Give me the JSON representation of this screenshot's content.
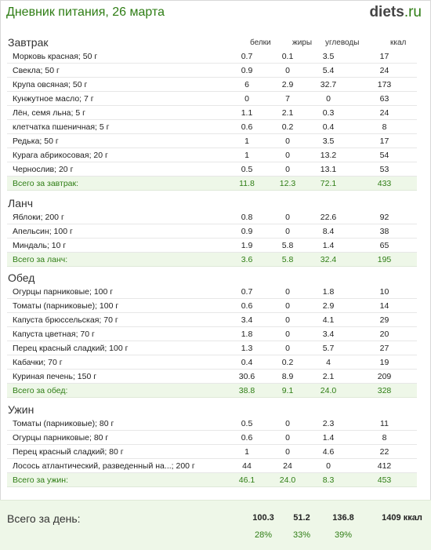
{
  "header": {
    "title": "Дневник питания, 26 марта",
    "logo_main": "diets",
    "logo_tld": ".ru"
  },
  "columns": {
    "protein": "белки",
    "fat": "жиры",
    "carbs": "углеводы",
    "kcal": "ккал"
  },
  "meals": [
    {
      "title": "Завтрак",
      "items": [
        {
          "name": "Морковь красная; 50 г",
          "p": "0.7",
          "f": "0.1",
          "c": "3.5",
          "k": "17"
        },
        {
          "name": "Свекла; 50 г",
          "p": "0.9",
          "f": "0",
          "c": "5.4",
          "k": "24"
        },
        {
          "name": "Крупа овсяная; 50 г",
          "p": "6",
          "f": "2.9",
          "c": "32.7",
          "k": "173"
        },
        {
          "name": "Кунжутное масло; 7 г",
          "p": "0",
          "f": "7",
          "c": "0",
          "k": "63"
        },
        {
          "name": "Лён, семя льна; 5 г",
          "p": "1.1",
          "f": "2.1",
          "c": "0.3",
          "k": "24"
        },
        {
          "name": "клетчатка пшеничная; 5 г",
          "p": "0.6",
          "f": "0.2",
          "c": "0.4",
          "k": "8"
        },
        {
          "name": "Редька; 50 г",
          "p": "1",
          "f": "0",
          "c": "3.5",
          "k": "17"
        },
        {
          "name": "Курага абрикосовая; 20 г",
          "p": "1",
          "f": "0",
          "c": "13.2",
          "k": "54"
        },
        {
          "name": "Чернослив; 20 г",
          "p": "0.5",
          "f": "0",
          "c": "13.1",
          "k": "53"
        }
      ],
      "total": {
        "name": "Всего за завтрак:",
        "p": "11.8",
        "f": "12.3",
        "c": "72.1",
        "k": "433"
      }
    },
    {
      "title": "Ланч",
      "items": [
        {
          "name": "Яблоки; 200 г",
          "p": "0.8",
          "f": "0",
          "c": "22.6",
          "k": "92"
        },
        {
          "name": "Апельсин; 100 г",
          "p": "0.9",
          "f": "0",
          "c": "8.4",
          "k": "38"
        },
        {
          "name": "Миндаль; 10 г",
          "p": "1.9",
          "f": "5.8",
          "c": "1.4",
          "k": "65"
        }
      ],
      "total": {
        "name": "Всего за ланч:",
        "p": "3.6",
        "f": "5.8",
        "c": "32.4",
        "k": "195"
      }
    },
    {
      "title": "Обед",
      "items": [
        {
          "name": "Огурцы парниковые; 100 г",
          "p": "0.7",
          "f": "0",
          "c": "1.8",
          "k": "10"
        },
        {
          "name": "Томаты (парниковые); 100 г",
          "p": "0.6",
          "f": "0",
          "c": "2.9",
          "k": "14"
        },
        {
          "name": "Капуста брюссельская; 70 г",
          "p": "3.4",
          "f": "0",
          "c": "4.1",
          "k": "29"
        },
        {
          "name": "Капуста цветная; 70 г",
          "p": "1.8",
          "f": "0",
          "c": "3.4",
          "k": "20"
        },
        {
          "name": "Перец красный сладкий; 100 г",
          "p": "1.3",
          "f": "0",
          "c": "5.7",
          "k": "27"
        },
        {
          "name": "Кабачки; 70 г",
          "p": "0.4",
          "f": "0.2",
          "c": "4",
          "k": "19"
        },
        {
          "name": "Куриная печень; 150 г",
          "p": "30.6",
          "f": "8.9",
          "c": "2.1",
          "k": "209"
        }
      ],
      "total": {
        "name": "Всего за обед:",
        "p": "38.8",
        "f": "9.1",
        "c": "24.0",
        "k": "328"
      }
    },
    {
      "title": "Ужин",
      "items": [
        {
          "name": "Томаты (парниковые); 80 г",
          "p": "0.5",
          "f": "0",
          "c": "2.3",
          "k": "11"
        },
        {
          "name": "Огурцы парниковые; 80 г",
          "p": "0.6",
          "f": "0",
          "c": "1.4",
          "k": "8"
        },
        {
          "name": "Перец красный сладкий; 80 г",
          "p": "1",
          "f": "0",
          "c": "4.6",
          "k": "22"
        },
        {
          "name": "Лосось атлантический, разведенный на...; 200 г",
          "p": "44",
          "f": "24",
          "c": "0",
          "k": "412"
        }
      ],
      "total": {
        "name": "Всего за ужин:",
        "p": "46.1",
        "f": "24.0",
        "c": "8.3",
        "k": "453"
      }
    }
  ],
  "day": {
    "label": "Всего за день:",
    "p": "100.3",
    "f": "51.2",
    "c": "136.8",
    "k": "1409 ккал",
    "p_pct": "28%",
    "f_pct": "33%",
    "c_pct": "39%"
  }
}
